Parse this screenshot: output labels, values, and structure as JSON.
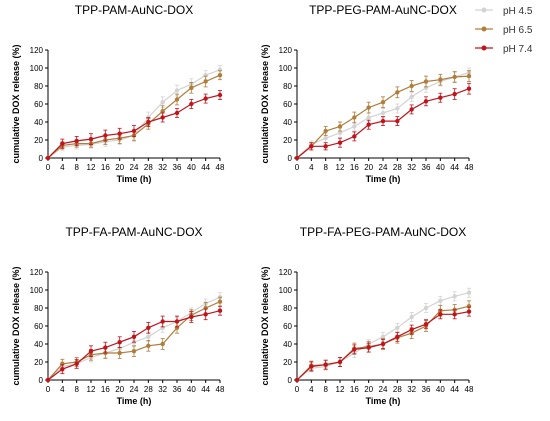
{
  "colors": {
    "pH 4.5": "#d3d3d3",
    "pH 6.5": "#b07d3b",
    "pH 7.4": "#c0141c"
  },
  "legend": [
    "pH 4.5",
    "pH 6.5",
    "pH 7.4"
  ],
  "chart_data": [
    {
      "type": "line",
      "title": "TPP-PAM-AuNC-DOX",
      "xlabel": "Time (h)",
      "ylabel": "cumulative DOX release (%)",
      "xlim": [
        0,
        48
      ],
      "ylim": [
        0,
        120
      ],
      "xticks": [
        0,
        4,
        8,
        12,
        16,
        20,
        24,
        28,
        32,
        36,
        40,
        44,
        48
      ],
      "yticks": [
        0,
        20,
        40,
        60,
        80,
        100,
        120
      ],
      "x": [
        0,
        4,
        8,
        12,
        16,
        20,
        24,
        28,
        32,
        36,
        40,
        44,
        48
      ],
      "series": [
        {
          "name": "pH 4.5",
          "values": [
            0,
            12,
            14,
            15,
            18,
            20,
            25,
            45,
            62,
            75,
            82,
            92,
            98
          ],
          "errors": [
            0,
            4,
            4,
            4,
            5,
            5,
            5,
            6,
            6,
            6,
            6,
            5,
            5
          ]
        },
        {
          "name": "pH 6.5",
          "values": [
            0,
            14,
            16,
            16,
            20,
            22,
            25,
            38,
            52,
            65,
            78,
            85,
            92
          ],
          "errors": [
            0,
            4,
            4,
            4,
            5,
            6,
            6,
            6,
            6,
            6,
            6,
            6,
            5
          ]
        },
        {
          "name": "pH 7.4",
          "values": [
            0,
            16,
            19,
            21,
            25,
            27,
            30,
            40,
            45,
            50,
            60,
            66,
            70
          ],
          "errors": [
            0,
            5,
            5,
            6,
            6,
            6,
            6,
            5,
            5,
            5,
            5,
            5,
            5
          ]
        }
      ]
    },
    {
      "type": "line",
      "title": "TPP-PEG-PAM-AuNC-DOX",
      "xlabel": "Time (h)",
      "ylabel": "cumulative DOX release (%)",
      "xlim": [
        0,
        48
      ],
      "ylim": [
        0,
        120
      ],
      "xticks": [
        0,
        4,
        8,
        12,
        16,
        20,
        24,
        28,
        32,
        36,
        40,
        44,
        48
      ],
      "yticks": [
        0,
        20,
        40,
        60,
        80,
        100,
        120
      ],
      "x": [
        0,
        4,
        8,
        12,
        16,
        20,
        24,
        28,
        32,
        36,
        40,
        44,
        48
      ],
      "series": [
        {
          "name": "pH 4.5",
          "values": [
            0,
            15,
            22,
            28,
            35,
            45,
            50,
            55,
            68,
            78,
            85,
            90,
            95
          ],
          "errors": [
            0,
            4,
            5,
            5,
            5,
            5,
            5,
            5,
            5,
            5,
            5,
            5,
            5
          ]
        },
        {
          "name": "pH 6.5",
          "values": [
            0,
            13,
            30,
            35,
            45,
            56,
            62,
            73,
            80,
            85,
            87,
            90,
            91
          ],
          "errors": [
            0,
            4,
            5,
            5,
            6,
            6,
            6,
            6,
            6,
            6,
            6,
            6,
            6
          ]
        },
        {
          "name": "pH 7.4",
          "values": [
            0,
            13,
            13,
            17,
            24,
            37,
            41,
            41,
            54,
            63,
            67,
            71,
            77
          ],
          "errors": [
            0,
            4,
            4,
            5,
            5,
            5,
            5,
            5,
            5,
            5,
            5,
            6,
            6
          ]
        }
      ]
    },
    {
      "type": "line",
      "title": "TPP-FA-PAM-AuNC-DOX",
      "xlabel": "Time (h)",
      "ylabel": "cumulative DOX release (%)",
      "xlim": [
        0,
        48
      ],
      "ylim": [
        0,
        120
      ],
      "xticks": [
        0,
        4,
        8,
        12,
        16,
        20,
        24,
        28,
        32,
        36,
        40,
        44,
        48
      ],
      "yticks": [
        0,
        20,
        40,
        60,
        80,
        100,
        120
      ],
      "x": [
        0,
        4,
        8,
        12,
        16,
        20,
        24,
        28,
        32,
        36,
        40,
        44,
        48
      ],
      "series": [
        {
          "name": "pH 4.5",
          "values": [
            0,
            15,
            18,
            25,
            30,
            35,
            42,
            48,
            58,
            65,
            75,
            85,
            92
          ],
          "errors": [
            0,
            5,
            5,
            5,
            5,
            5,
            5,
            5,
            5,
            5,
            5,
            5,
            5
          ]
        },
        {
          "name": "pH 6.5",
          "values": [
            0,
            18,
            20,
            28,
            30,
            30,
            32,
            38,
            40,
            58,
            72,
            80,
            87
          ],
          "errors": [
            0,
            5,
            5,
            6,
            6,
            6,
            6,
            6,
            6,
            6,
            6,
            6,
            5
          ]
        },
        {
          "name": "pH 7.4",
          "values": [
            0,
            12,
            18,
            32,
            36,
            42,
            48,
            58,
            65,
            65,
            70,
            73,
            77
          ],
          "errors": [
            0,
            5,
            5,
            6,
            6,
            6,
            6,
            6,
            6,
            6,
            6,
            6,
            5
          ]
        }
      ]
    },
    {
      "type": "line",
      "title": "TPP-FA-PEG-PAM-AuNC-DOX",
      "xlabel": "Time (h)",
      "ylabel": "cumulative DOX release (%)",
      "xlim": [
        0,
        48
      ],
      "ylim": [
        0,
        120
      ],
      "xticks": [
        0,
        4,
        8,
        12,
        16,
        20,
        24,
        28,
        32,
        36,
        40,
        44,
        48
      ],
      "yticks": [
        0,
        20,
        40,
        60,
        80,
        100,
        120
      ],
      "x": [
        0,
        4,
        8,
        12,
        16,
        20,
        24,
        28,
        32,
        36,
        40,
        44,
        48
      ],
      "series": [
        {
          "name": "pH 4.5",
          "values": [
            0,
            13,
            15,
            20,
            30,
            40,
            48,
            58,
            70,
            80,
            88,
            93,
            97
          ],
          "errors": [
            0,
            4,
            4,
            5,
            5,
            5,
            5,
            5,
            5,
            5,
            5,
            5,
            5
          ]
        },
        {
          "name": "pH 6.5",
          "values": [
            0,
            16,
            17,
            20,
            35,
            37,
            40,
            47,
            52,
            60,
            77,
            78,
            82
          ],
          "errors": [
            0,
            5,
            5,
            5,
            6,
            6,
            6,
            6,
            6,
            6,
            6,
            6,
            6
          ]
        },
        {
          "name": "pH 7.4",
          "values": [
            0,
            15,
            17,
            20,
            34,
            36,
            40,
            48,
            56,
            62,
            73,
            73,
            76
          ],
          "errors": [
            0,
            5,
            5,
            5,
            5,
            5,
            5,
            5,
            5,
            5,
            5,
            5,
            5
          ]
        }
      ]
    }
  ]
}
